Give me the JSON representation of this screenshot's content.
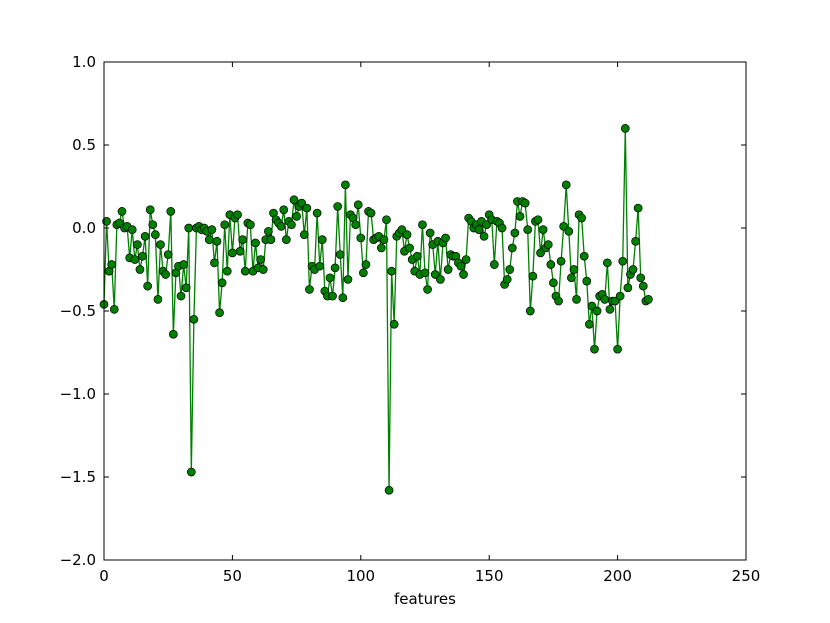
{
  "chart_data": {
    "type": "line",
    "title": "",
    "xlabel": "features",
    "ylabel": "",
    "xlim": [
      0,
      250
    ],
    "ylim": [
      -2.0,
      1.0
    ],
    "xticks": [
      0,
      50,
      100,
      150,
      200,
      250
    ],
    "xtick_labels": [
      "0",
      "50",
      "100",
      "150",
      "200",
      "250"
    ],
    "yticks": [
      -2.0,
      -1.5,
      -1.0,
      -0.5,
      0.0,
      0.5,
      1.0
    ],
    "ytick_labels": [
      "−2.0",
      "−1.5",
      "−1.0",
      "−0.5",
      "0.0",
      "0.5",
      "1.0"
    ],
    "grid": false,
    "colors": {
      "line": "#008000",
      "marker_fill": "#008000",
      "marker_edge": "#000000"
    },
    "series": [
      {
        "values": [
          -0.46,
          0.04,
          -0.26,
          -0.22,
          -0.49,
          0.02,
          0.03,
          0.1,
          0.0,
          0.01,
          -0.18,
          -0.01,
          -0.19,
          -0.1,
          -0.25,
          -0.17,
          -0.05,
          -0.35,
          0.11,
          0.02,
          -0.04,
          -0.43,
          -0.1,
          -0.26,
          -0.28,
          -0.16,
          0.1,
          -0.64,
          -0.27,
          -0.23,
          -0.41,
          -0.22,
          -0.36,
          0.0,
          -1.47,
          -0.55,
          0.0,
          0.01,
          -0.01,
          0.0,
          -0.02,
          -0.07,
          -0.01,
          -0.21,
          -0.08,
          -0.51,
          -0.33,
          0.02,
          -0.26,
          0.08,
          -0.15,
          0.06,
          0.08,
          -0.14,
          -0.07,
          -0.26,
          0.03,
          0.02,
          -0.26,
          -0.09,
          -0.24,
          -0.19,
          -0.25,
          -0.07,
          -0.02,
          -0.07,
          0.09,
          0.05,
          0.03,
          0.01,
          0.11,
          -0.07,
          0.04,
          0.02,
          0.17,
          0.07,
          0.13,
          0.15,
          -0.04,
          0.12,
          -0.37,
          -0.23,
          -0.25,
          0.09,
          -0.23,
          -0.07,
          -0.38,
          -0.41,
          -0.3,
          -0.41,
          -0.24,
          0.13,
          -0.16,
          -0.42,
          0.26,
          -0.31,
          0.08,
          0.06,
          0.02,
          0.14,
          -0.06,
          -0.27,
          -0.22,
          0.1,
          0.09,
          -0.07,
          -0.06,
          -0.05,
          -0.12,
          -0.07,
          0.05,
          -1.58,
          -0.26,
          -0.58,
          -0.05,
          -0.03,
          -0.01,
          -0.14,
          -0.04,
          -0.12,
          -0.19,
          -0.26,
          -0.17,
          -0.28,
          0.02,
          -0.27,
          -0.37,
          -0.03,
          -0.1,
          -0.28,
          -0.08,
          -0.31,
          -0.09,
          -0.06,
          -0.25,
          -0.16,
          -0.17,
          -0.17,
          -0.21,
          -0.23,
          -0.28,
          -0.19,
          0.06,
          0.04,
          0.0,
          0.02,
          -0.01,
          0.04,
          -0.05,
          0.02,
          0.08,
          0.05,
          -0.22,
          0.04,
          0.03,
          0.0,
          -0.34,
          -0.31,
          -0.25,
          -0.12,
          -0.03,
          0.16,
          0.07,
          0.16,
          0.15,
          -0.01,
          -0.5,
          -0.29,
          0.04,
          0.05,
          -0.15,
          -0.01,
          -0.12,
          -0.1,
          -0.22,
          -0.33,
          -0.41,
          -0.44,
          -0.2,
          0.01,
          0.26,
          -0.02,
          -0.3,
          -0.25,
          -0.43,
          0.08,
          0.06,
          -0.17,
          -0.32,
          -0.58,
          -0.47,
          -0.73,
          -0.5,
          -0.41,
          -0.4,
          -0.43,
          -0.21,
          -0.49,
          -0.44,
          -0.44,
          -0.73,
          -0.41,
          -0.2,
          0.6,
          -0.36,
          -0.28,
          -0.25,
          -0.08,
          0.12,
          -0.3,
          -0.35,
          -0.44,
          -0.43
        ]
      }
    ]
  }
}
